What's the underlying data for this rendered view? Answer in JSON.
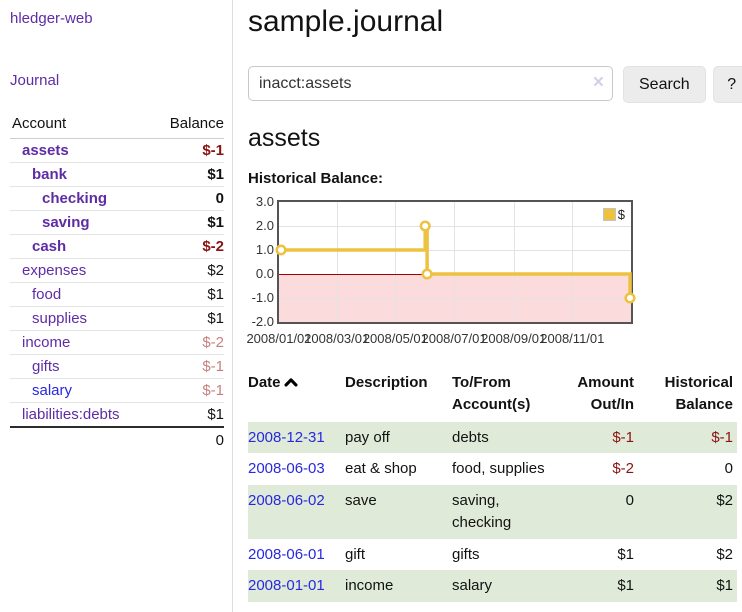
{
  "sidebar": {
    "app_title": "hledger-web",
    "nav_journal": "Journal",
    "header": {
      "account": "Account",
      "balance": "Balance"
    },
    "accounts": [
      {
        "name": "assets",
        "balance": "$-1",
        "depth": 1,
        "bold": true
      },
      {
        "name": "bank",
        "balance": "$1",
        "depth": 2,
        "bold": true
      },
      {
        "name": "checking",
        "balance": "0",
        "depth": 3,
        "bold": true
      },
      {
        "name": "saving",
        "balance": "$1",
        "depth": 3,
        "bold": true
      },
      {
        "name": "cash",
        "balance": "$-2",
        "depth": 2,
        "bold": true
      },
      {
        "name": "expenses",
        "balance": "$2",
        "depth": 1,
        "bold": false
      },
      {
        "name": "food",
        "balance": "$1",
        "depth": 2,
        "bold": false
      },
      {
        "name": "supplies",
        "balance": "$1",
        "depth": 2,
        "bold": false
      },
      {
        "name": "income",
        "balance": "$-2",
        "depth": 1,
        "bold": false
      },
      {
        "name": "gifts",
        "balance": "$-1",
        "depth": 2,
        "bold": false
      },
      {
        "name": "salary",
        "balance": "$-1",
        "depth": 2,
        "bold": false,
        "unvisited": true
      },
      {
        "name": "liabilities:debts",
        "balance": "$1",
        "depth": 1,
        "bold": false
      }
    ],
    "total": "0"
  },
  "header": {
    "title": "sample.journal"
  },
  "search": {
    "value": "inacct:assets",
    "clear_label": "×",
    "button_label": "Search",
    "help_label": "?"
  },
  "account_heading": "assets",
  "chart_label": "Historical Balance:",
  "chart_data": {
    "type": "line",
    "title": "Historical Balance:",
    "step": true,
    "series": [
      {
        "name": "$",
        "color": "#EDC240",
        "points": [
          [
            "2008-01-01",
            1
          ],
          [
            "2008-06-01",
            2
          ],
          [
            "2008-06-03",
            0
          ],
          [
            "2008-12-31",
            -1
          ]
        ]
      }
    ],
    "x_range": [
      "2008-01-01",
      "2009-01-01"
    ],
    "ylim": [
      -2,
      3
    ],
    "y_ticks": [
      "3.0",
      "2.0",
      "1.0",
      "0.0",
      "-1.0",
      "-2.0"
    ],
    "x_ticks": [
      "2008/01/01",
      "2008/03/01",
      "2008/05/01",
      "2008/07/01",
      "2008/09/01",
      "2008/11/01"
    ],
    "grid": true,
    "legend_position": "top-right",
    "zero_line_color": "#a40000",
    "below_zero_fill": "#fbdbdb"
  },
  "journal": {
    "headers": {
      "date": "Date",
      "description": "Description",
      "accounts": "To/From Account(s)",
      "amount": "Amount Out/In",
      "balance": "Historical Balance"
    },
    "rows": [
      {
        "date": "2008-12-31",
        "description": "pay off",
        "accounts": "debts",
        "amount": "$-1",
        "balance": "$-1"
      },
      {
        "date": "2008-06-03",
        "description": "eat & shop",
        "accounts": "food, supplies",
        "amount": "$-2",
        "balance": "0"
      },
      {
        "date": "2008-06-02",
        "description": "save",
        "accounts": "saving, checking",
        "amount": "0",
        "balance": "$2"
      },
      {
        "date": "2008-06-01",
        "description": "gift",
        "accounts": "gifts",
        "amount": "$1",
        "balance": "$2"
      },
      {
        "date": "2008-01-01",
        "description": "income",
        "accounts": "salary",
        "amount": "$1",
        "balance": "$1"
      }
    ]
  }
}
